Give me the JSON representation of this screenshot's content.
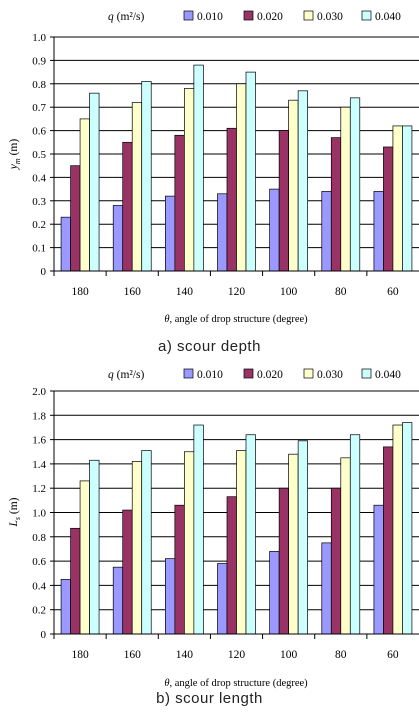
{
  "legend_prefix_sym": "q",
  "legend_prefix_unit": "(m²/s)",
  "chart_data": [
    {
      "type": "bar",
      "caption": "a)  scour depth",
      "categories": [
        "180",
        "160",
        "140",
        "120",
        "100",
        "80",
        "60"
      ],
      "series": [
        {
          "name": "0.010",
          "color": "#9999ff",
          "values": [
            0.23,
            0.28,
            0.32,
            0.33,
            0.35,
            0.34,
            0.34
          ]
        },
        {
          "name": "0.020",
          "color": "#993366",
          "values": [
            0.45,
            0.55,
            0.58,
            0.61,
            0.6,
            0.57,
            0.53
          ]
        },
        {
          "name": "0.030",
          "color": "#ffffcc",
          "values": [
            0.65,
            0.72,
            0.78,
            0.8,
            0.73,
            0.7,
            0.62
          ]
        },
        {
          "name": "0.040",
          "color": "#ccffff",
          "values": [
            0.76,
            0.81,
            0.88,
            0.85,
            0.77,
            0.74,
            0.62
          ]
        }
      ],
      "yticks": [
        "0",
        "0.1",
        "0.2",
        "0.3",
        "0.4",
        "0.5",
        "0.6",
        "0.7",
        "0.8",
        "0.9",
        "1.0"
      ],
      "ylim": [
        0,
        1.0
      ],
      "ylabel_sym": "y",
      "ylabel_sub": "m",
      "ylabel_unit": " (m)",
      "xlabel_sym": "θ",
      "xlabel_text": ", angle of drop structure (degree)",
      "grid": true,
      "legend_position": "top"
    },
    {
      "type": "bar",
      "caption": "b)  scour length",
      "categories": [
        "180",
        "160",
        "140",
        "120",
        "100",
        "80",
        "60"
      ],
      "series": [
        {
          "name": "0.010",
          "color": "#9999ff",
          "values": [
            0.45,
            0.55,
            0.62,
            0.58,
            0.68,
            0.75,
            1.06
          ]
        },
        {
          "name": "0.020",
          "color": "#993366",
          "values": [
            0.87,
            1.02,
            1.06,
            1.13,
            1.2,
            1.2,
            1.54
          ]
        },
        {
          "name": "0.030",
          "color": "#ffffcc",
          "values": [
            1.26,
            1.42,
            1.5,
            1.51,
            1.48,
            1.45,
            1.72
          ]
        },
        {
          "name": "0.040",
          "color": "#ccffff",
          "values": [
            1.43,
            1.51,
            1.72,
            1.64,
            1.59,
            1.64,
            1.74
          ]
        }
      ],
      "yticks": [
        "0",
        "0.2",
        "0.4",
        "0.6",
        "0.8",
        "1.0",
        "1.2",
        "1.4",
        "1.6",
        "1.8",
        "2.0"
      ],
      "ylim": [
        0,
        2.0
      ],
      "ylabel_sym": "L",
      "ylabel_sub": "s",
      "ylabel_unit": " (m)",
      "xlabel_sym": "θ",
      "xlabel_text": ", angle of drop structure (degree)",
      "grid": true,
      "legend_position": "top"
    }
  ]
}
